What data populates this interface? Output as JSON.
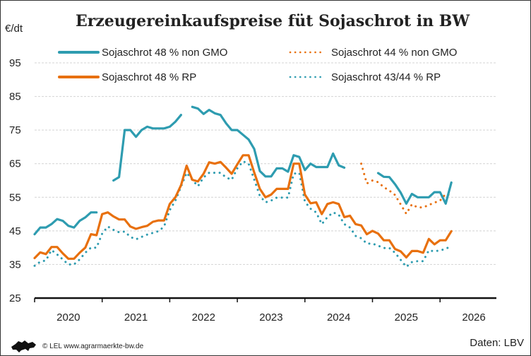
{
  "chart_data": {
    "type": "line",
    "title": "Erzeugereinkaufspreise füt Sojaschrot in BW",
    "ylabel": "€/dt",
    "xlabel": "",
    "ylim": [
      25,
      95
    ],
    "yticks": [
      25,
      35,
      45,
      55,
      65,
      75,
      85,
      95
    ],
    "xticklabels": [
      "2020",
      "2021",
      "2022",
      "2023",
      "2024",
      "2025",
      "2026"
    ],
    "xlim": [
      "2020-01",
      "2026-11"
    ],
    "grid": "horizontal dashed",
    "legend_position": "top",
    "x": [
      "2020-01",
      "2020-02",
      "2020-03",
      "2020-04",
      "2020-05",
      "2020-06",
      "2020-07",
      "2020-08",
      "2020-09",
      "2020-10",
      "2020-11",
      "2020-12",
      "2021-01",
      "2021-02",
      "2021-03",
      "2021-04",
      "2021-05",
      "2021-06",
      "2021-07",
      "2021-08",
      "2021-09",
      "2021-10",
      "2021-11",
      "2021-12",
      "2022-01",
      "2022-02",
      "2022-03",
      "2022-04",
      "2022-05",
      "2022-06",
      "2022-07",
      "2022-08",
      "2022-09",
      "2022-10",
      "2022-11",
      "2022-12",
      "2023-01",
      "2023-02",
      "2023-03",
      "2023-04",
      "2023-05",
      "2023-06",
      "2023-07",
      "2023-08",
      "2023-09",
      "2023-10",
      "2023-11",
      "2023-12",
      "2024-01",
      "2024-02",
      "2024-03",
      "2024-04",
      "2024-05",
      "2024-06",
      "2024-07",
      "2024-08",
      "2024-09",
      "2024-10",
      "2024-11",
      "2024-12",
      "2025-01",
      "2025-02",
      "2025-03",
      "2025-04",
      "2025-05",
      "2025-06",
      "2025-07",
      "2025-08",
      "2025-09",
      "2025-10",
      "2025-11",
      "2025-12",
      "2026-01",
      "2026-02",
      "2026-03"
    ],
    "series": [
      {
        "name": "Sojaschrot 48 % non GMO",
        "color": "#2e9cb0",
        "style": "solid",
        "values": [
          44,
          46,
          46,
          47,
          48.5,
          48,
          46.5,
          46,
          48,
          49,
          50.5,
          50.5,
          null,
          null,
          60,
          61,
          75,
          75,
          73,
          75,
          76,
          75.5,
          75.5,
          75.5,
          76,
          77.5,
          79.5,
          null,
          81.9,
          81.4,
          79.8,
          81,
          80,
          79.5,
          77,
          75,
          75,
          73.6,
          72.2,
          69.4,
          62.8,
          61.2,
          61.2,
          63.6,
          63.6,
          62.6,
          67.5,
          67,
          63.1,
          65,
          64,
          64,
          64,
          68,
          64.5,
          63.8,
          null,
          null,
          null,
          null,
          null,
          62.2,
          61.1,
          61,
          58.9,
          56.4,
          53.1,
          56,
          55,
          55,
          55,
          56.5,
          56.5,
          53.1,
          59.4
        ]
      },
      {
        "name": "Sojaschrot 44 % non GMO",
        "color": "#e8700e",
        "style": "dotted",
        "values": [
          null,
          null,
          null,
          null,
          null,
          null,
          null,
          null,
          null,
          null,
          null,
          null,
          null,
          null,
          null,
          null,
          null,
          null,
          null,
          null,
          null,
          null,
          null,
          null,
          null,
          null,
          null,
          null,
          null,
          null,
          null,
          null,
          null,
          null,
          null,
          null,
          null,
          null,
          null,
          null,
          null,
          null,
          null,
          null,
          null,
          null,
          null,
          null,
          null,
          null,
          null,
          null,
          null,
          null,
          null,
          null,
          null,
          null,
          65,
          59.1,
          60,
          59.5,
          58,
          57,
          55.7,
          52.9,
          50.1,
          52.9,
          52,
          52,
          52.7,
          53.4,
          54,
          56,
          55.5
        ]
      },
      {
        "name": "Sojaschrot 48 % RP",
        "color": "#e8700e",
        "style": "solid",
        "values": [
          36.9,
          38.6,
          38.1,
          40.2,
          40.2,
          38.3,
          36.7,
          36.7,
          38.5,
          40,
          44,
          43.7,
          50,
          50.5,
          49.3,
          48.4,
          48.4,
          46.3,
          45.6,
          46.1,
          46.5,
          47.7,
          48.1,
          48.1,
          53,
          55,
          58.6,
          64.4,
          60.2,
          59.7,
          62,
          65.4,
          65,
          65.5,
          63.8,
          62,
          64.8,
          67.5,
          67.5,
          62.4,
          57.5,
          55,
          55.8,
          57.5,
          57.5,
          57.5,
          65,
          65,
          55.8,
          53.2,
          53.5,
          50,
          53,
          53.5,
          53,
          49.1,
          49.5,
          47,
          46.6,
          44,
          45,
          44.2,
          42.2,
          42.2,
          39.6,
          38.9,
          37.1,
          39,
          39,
          38.5,
          42.6,
          41,
          42.2,
          42.2,
          44.9
        ]
      },
      {
        "name": "Sojaschrot 43/44 % RP",
        "color": "#2e9cb0",
        "style": "dotted",
        "values": [
          34.6,
          35.8,
          36.2,
          39.3,
          38,
          36.5,
          35,
          35,
          36.5,
          38.5,
          40,
          40,
          44.2,
          46.3,
          45.3,
          44.6,
          44.8,
          43.2,
          42.5,
          43.2,
          43.9,
          44.4,
          44.9,
          46.3,
          51.2,
          54,
          58.2,
          62.3,
          60.2,
          58.3,
          60.9,
          62.3,
          62.3,
          62.3,
          60.9,
          60.2,
          63.6,
          65.7,
          65,
          60.3,
          55.4,
          53.5,
          54,
          54.9,
          54.9,
          54.9,
          62,
          62.3,
          53.7,
          51.6,
          50.5,
          47,
          49.1,
          50.5,
          49.8,
          47,
          46,
          43.5,
          42.8,
          41.2,
          41.2,
          40.6,
          39.9,
          39.9,
          38.5,
          36.4,
          34.3,
          35.7,
          36,
          36,
          39.2,
          38.9,
          39.2,
          39.6,
          40.6
        ]
      }
    ]
  },
  "footer": {
    "copyright": "© LEL www.agrarmaerkte-bw.de",
    "source": "Daten: LBV",
    "logo": "Baden-Württemberg lion logo"
  }
}
